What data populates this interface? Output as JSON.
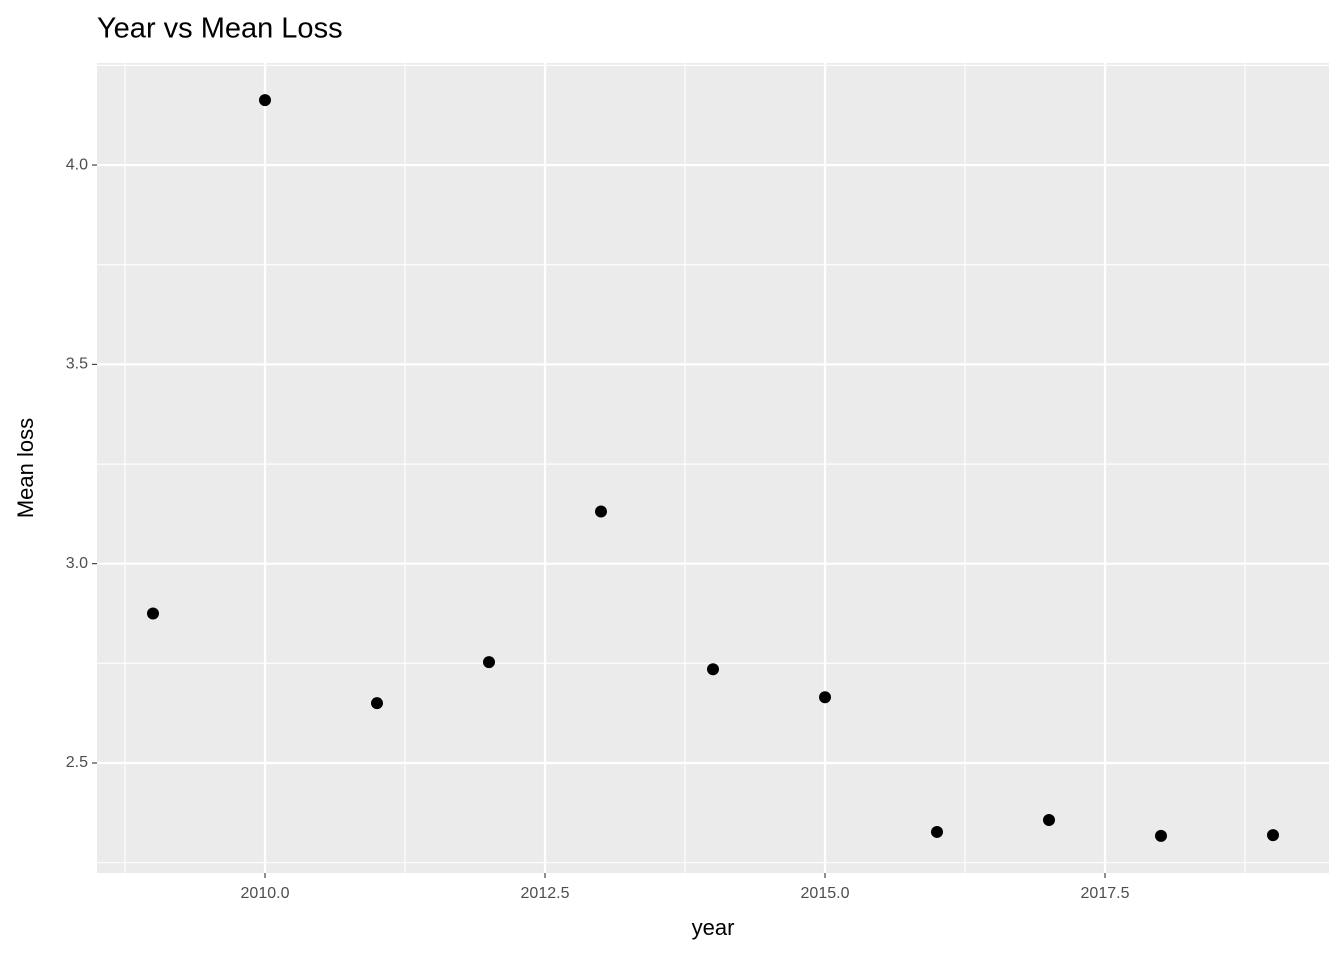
{
  "chart_data": {
    "type": "scatter",
    "title": "Year vs Mean Loss",
    "x_label": "year",
    "y_label": "Mean loss",
    "x": [
      2009,
      2010,
      2011,
      2012,
      2013,
      2014,
      2015,
      2016,
      2017,
      2018,
      2019
    ],
    "values": [
      2.875,
      4.163,
      2.65,
      2.753,
      3.131,
      2.735,
      2.665,
      2.327,
      2.357,
      2.317,
      2.319
    ],
    "color": "#000000",
    "xlim": [
      2008.5,
      2019.5
    ],
    "xticks": [
      {
        "value": 2010,
        "label": "2010.0"
      },
      {
        "value": 2012.5,
        "label": "2012.5"
      },
      {
        "value": 2015,
        "label": "2015.0"
      },
      {
        "value": 2017.5,
        "label": "2017.5"
      }
    ],
    "ylim": [
      2.224,
      4.256
    ],
    "yticks": [
      {
        "value": 2.5,
        "label": "2.5"
      },
      {
        "value": 3,
        "label": "3.0"
      },
      {
        "value": 3.5,
        "label": "3.5"
      },
      {
        "value": 4,
        "label": "4.0"
      }
    ],
    "grid": true
  }
}
